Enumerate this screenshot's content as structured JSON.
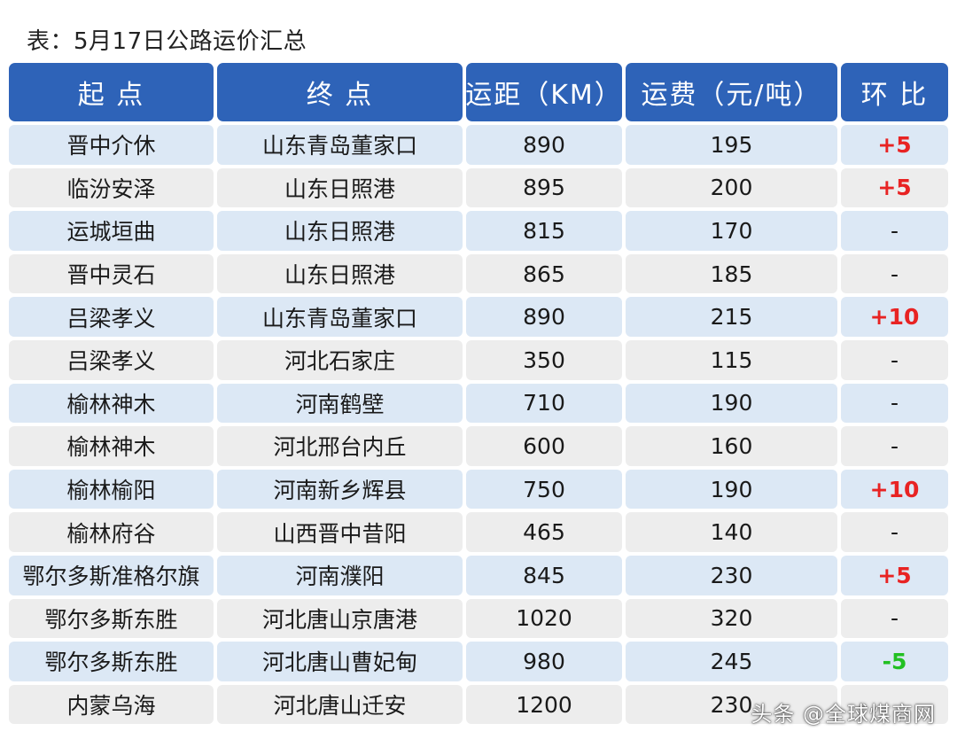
{
  "caption": "表：5月17日公路运价汇总",
  "headers": [
    "起 点",
    "终 点",
    "运距（KM）",
    "运费（元/吨）",
    "环 比"
  ],
  "rows": [
    {
      "origin": "晋中介休",
      "dest": "山东青岛董家口",
      "distance": "890",
      "fee": "195",
      "change": "+5",
      "trend": "up"
    },
    {
      "origin": "临汾安泽",
      "dest": "山东日照港",
      "distance": "895",
      "fee": "200",
      "change": "+5",
      "trend": "up"
    },
    {
      "origin": "运城垣曲",
      "dest": "山东日照港",
      "distance": "815",
      "fee": "170",
      "change": "-",
      "trend": "flat"
    },
    {
      "origin": "晋中灵石",
      "dest": "山东日照港",
      "distance": "865",
      "fee": "185",
      "change": "-",
      "trend": "flat"
    },
    {
      "origin": "吕梁孝义",
      "dest": "山东青岛董家口",
      "distance": "890",
      "fee": "215",
      "change": "+10",
      "trend": "up"
    },
    {
      "origin": "吕梁孝义",
      "dest": "河北石家庄",
      "distance": "350",
      "fee": "115",
      "change": "-",
      "trend": "flat"
    },
    {
      "origin": "榆林神木",
      "dest": "河南鹤壁",
      "distance": "710",
      "fee": "190",
      "change": "-",
      "trend": "flat"
    },
    {
      "origin": "榆林神木",
      "dest": "河北邢台内丘",
      "distance": "600",
      "fee": "160",
      "change": "-",
      "trend": "flat"
    },
    {
      "origin": "榆林榆阳",
      "dest": "河南新乡辉县",
      "distance": "750",
      "fee": "190",
      "change": "+10",
      "trend": "up"
    },
    {
      "origin": "榆林府谷",
      "dest": "山西晋中昔阳",
      "distance": "465",
      "fee": "140",
      "change": "-",
      "trend": "flat"
    },
    {
      "origin": "鄂尔多斯准格尔旗",
      "dest": "河南濮阳",
      "distance": "845",
      "fee": "230",
      "change": "+5",
      "trend": "up"
    },
    {
      "origin": "鄂尔多斯东胜",
      "dest": "河北唐山京唐港",
      "distance": "1020",
      "fee": "320",
      "change": "-",
      "trend": "flat"
    },
    {
      "origin": "鄂尔多斯东胜",
      "dest": "河北唐山曹妃甸",
      "distance": "980",
      "fee": "245",
      "change": "-5",
      "trend": "down"
    },
    {
      "origin": "内蒙乌海",
      "dest": "河北唐山迁安",
      "distance": "1200",
      "fee": "230",
      "change": "",
      "trend": "flat"
    }
  ],
  "watermark": "头条 @全球煤商网",
  "colors": {
    "header": "#2e63b8",
    "row_odd": "#dce8f5",
    "row_even": "#ededed",
    "up": "#e82323",
    "down": "#22c022"
  }
}
